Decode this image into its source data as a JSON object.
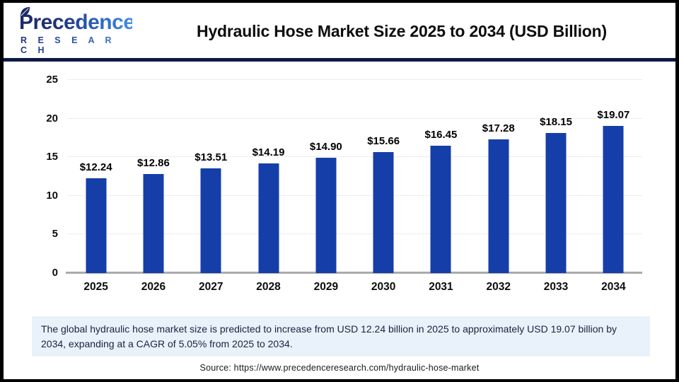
{
  "header": {
    "logo": {
      "brand": "Precedence",
      "sub": "R E S E A R C H"
    },
    "title": "Hydraulic Hose Market Size 2025 to 2034 (USD Billion)"
  },
  "chart_data": {
    "type": "bar",
    "title": "Hydraulic Hose Market Size 2025 to 2034 (USD Billion)",
    "categories": [
      "2025",
      "2026",
      "2027",
      "2028",
      "2029",
      "2030",
      "2031",
      "2032",
      "2033",
      "2034"
    ],
    "values": [
      12.24,
      12.86,
      13.51,
      14.19,
      14.9,
      15.66,
      16.45,
      17.28,
      18.15,
      19.07
    ],
    "value_labels": [
      "$12.24",
      "$12.86",
      "$13.51",
      "$14.19",
      "$14.90",
      "$15.66",
      "$16.45",
      "$17.28",
      "$18.15",
      "$19.07"
    ],
    "xlabel": "",
    "ylabel": "",
    "ylim": [
      0,
      25
    ],
    "yticks": [
      0,
      5,
      10,
      15,
      20,
      25
    ],
    "grid": "horizontal",
    "legend": "none",
    "bar_color": "#153ea9"
  },
  "note": {
    "text": "The global hydraulic hose market size is predicted to increase from USD 12.24 billion in 2025 to approximately USD 19.07 billion by 2034, expanding at a CAGR of 5.05% from 2025 to 2034."
  },
  "source": {
    "text": "Source: https://www.precedenceresearch.com/hydraulic-hose-market"
  },
  "colors": {
    "bar": "#153ea9",
    "header_divider": "#0f1848",
    "note_background": "#e9f1fb",
    "gridline": "#ededee",
    "axis_line": "#a9abad",
    "logo_dark": "#1c2a68",
    "logo_light": "#4a90dc"
  }
}
